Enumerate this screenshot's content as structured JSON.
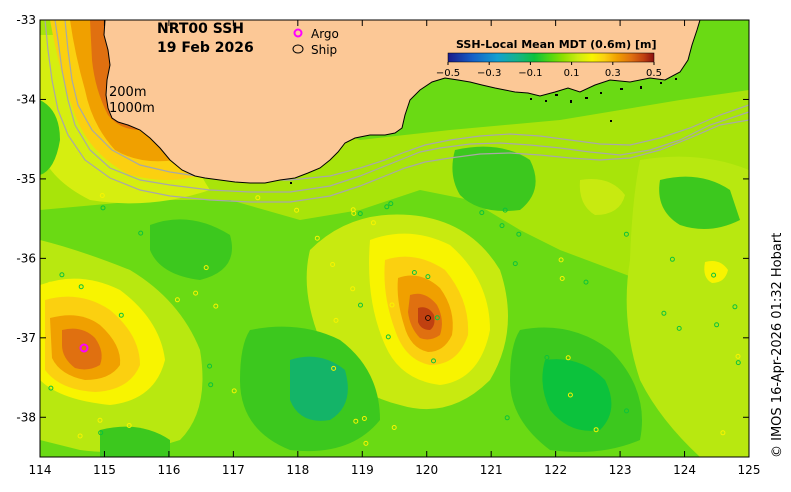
{
  "map": {
    "title_line1": "NRT00 SSH",
    "title_line2": "19 Feb 2026",
    "legend_argo": "Argo",
    "legend_ship": "Ship",
    "depth_label_1": "200m",
    "depth_label_2": "1000m",
    "credit": "© IMOS 16-Apr-2026 01:32 Hobart",
    "lon_ticks": [
      "114",
      "115",
      "116",
      "117",
      "118",
      "119",
      "120",
      "121",
      "122",
      "123",
      "124",
      "125"
    ],
    "lat_ticks": [
      "-33",
      "-34",
      "-35",
      "-36",
      "-37",
      "-38"
    ],
    "lon_range": [
      114,
      125
    ],
    "lat_range": [
      -38.5,
      -33
    ],
    "colors": {
      "land": "#fcc896",
      "argo": "#ff00ff",
      "contour": "#a8a8a8",
      "coast": "#000000"
    }
  },
  "colorbar": {
    "title": "SSH-Local Mean MDT (0.6m) [m]",
    "tick_labels": [
      "−0.5",
      "−0.3",
      "−0.1",
      "0.1",
      "0.3",
      "0.5"
    ],
    "range": [
      -0.5,
      0.5
    ],
    "stops": [
      "#1a1a8a",
      "#1560c8",
      "#12a0d0",
      "#14b488",
      "#0cc23c",
      "#55d810",
      "#90e000",
      "#ccec10",
      "#f8f400",
      "#fbd010",
      "#f0a000",
      "#e07010",
      "#c04010",
      "#8a1010"
    ]
  }
}
